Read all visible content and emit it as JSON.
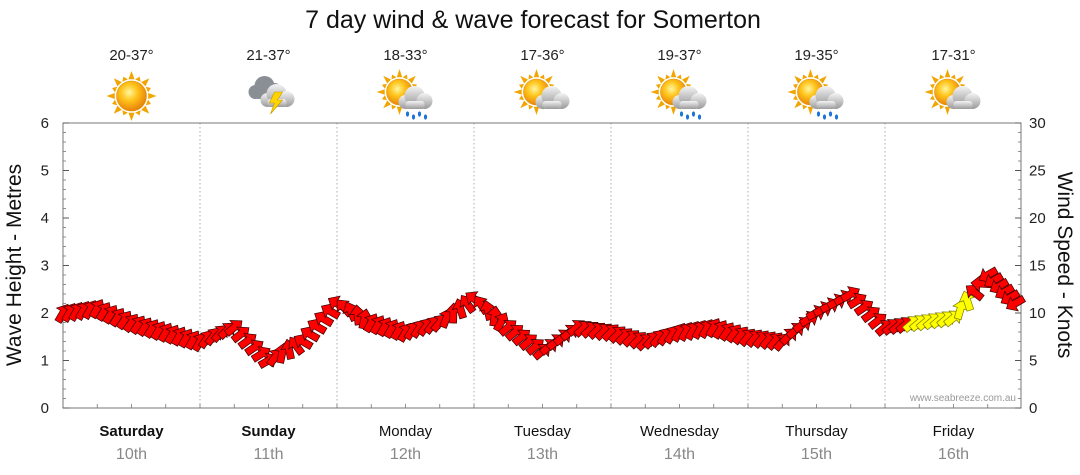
{
  "chart_data": {
    "type": "line",
    "title": "7 day wind & wave forecast for Somerton",
    "y_left_label": "Wave Height - Metres",
    "y_right_label": "Wind Speed - Knots",
    "y_left_range": [
      0,
      6
    ],
    "y_right_range": [
      0,
      30
    ],
    "y_left_ticks": [
      "0",
      "1",
      "2",
      "3",
      "4",
      "5",
      "6"
    ],
    "y_right_ticks": [
      "0",
      "5",
      "10",
      "15",
      "20",
      "25",
      "30"
    ],
    "watermark": "www.seabreeze.com.au",
    "days": [
      {
        "name": "Saturday",
        "date": "10th",
        "bold": true,
        "temp": "20-37°",
        "icon": "sunny-icon"
      },
      {
        "name": "Sunday",
        "date": "11th",
        "bold": true,
        "temp": "21-37°",
        "icon": "thunderstorm-icon"
      },
      {
        "name": "Monday",
        "date": "12th",
        "bold": false,
        "temp": "18-33°",
        "icon": "sun-cloud-rain-icon"
      },
      {
        "name": "Tuesday",
        "date": "13th",
        "bold": false,
        "temp": "17-36°",
        "icon": "sun-cloud-icon"
      },
      {
        "name": "Wednesday",
        "date": "14th",
        "bold": false,
        "temp": "19-37°",
        "icon": "sun-cloud-rain-icon"
      },
      {
        "name": "Thursday",
        "date": "15th",
        "bold": false,
        "temp": "19-35°",
        "icon": "sun-cloud-rain-icon"
      },
      {
        "name": "Friday",
        "date": "16th",
        "bold": false,
        "temp": "17-31°",
        "icon": "sun-cloud-icon"
      }
    ],
    "series": [
      {
        "name": "Wind Speed",
        "unit": "knots",
        "color": "#ff0000",
        "highlight_color": "#ffff00",
        "x_day": [
          0.0,
          0.25,
          0.5,
          0.75,
          1.0,
          1.25,
          1.5,
          1.75,
          2.0,
          2.25,
          2.5,
          2.75,
          3.0,
          3.25,
          3.5,
          3.75,
          4.0,
          4.25,
          4.5,
          4.75,
          5.0,
          5.25,
          5.5,
          5.75,
          6.0,
          6.25,
          6.5,
          6.75,
          6.95
        ],
        "values": [
          10,
          10.5,
          9,
          8,
          7,
          8.5,
          5,
          7,
          11,
          9,
          8,
          9,
          11.5,
          8.5,
          6,
          8.5,
          8,
          7,
          8,
          8.5,
          7.5,
          7,
          10,
          12,
          8.5,
          9,
          9.5,
          14,
          11
        ],
        "direction_deg": [
          300,
          300,
          305,
          300,
          300,
          320,
          330,
          210,
          210,
          300,
          300,
          310,
          215,
          320,
          320,
          320,
          315,
          315,
          300,
          300,
          310,
          310,
          335,
          330,
          320,
          320,
          320,
          150,
          150
        ]
      }
    ]
  }
}
